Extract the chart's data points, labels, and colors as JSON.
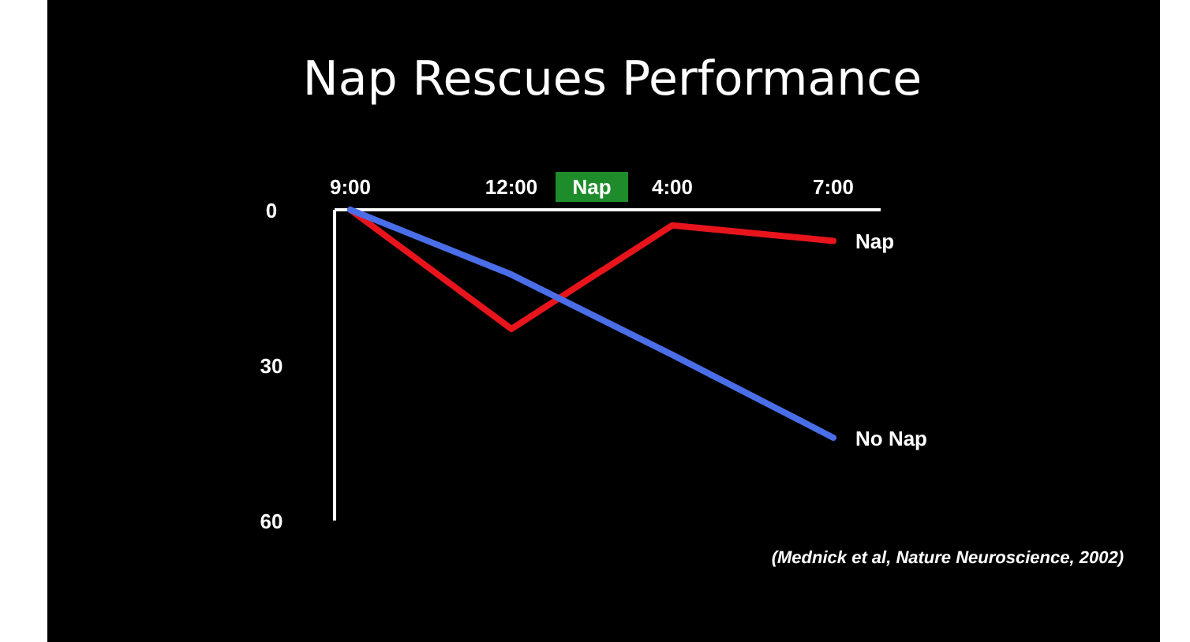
{
  "chart_data": {
    "type": "line",
    "title": "Nap Rescues Performance",
    "categories": [
      "9:00",
      "12:00",
      "4:00",
      "7:00"
    ],
    "series": [
      {
        "name": "Nap",
        "color": "#e8141c",
        "values": [
          0,
          23,
          3,
          6
        ]
      },
      {
        "name": "No Nap",
        "color": "#4a6ee8",
        "values": [
          0,
          12.5,
          28,
          44
        ]
      }
    ],
    "ylim": [
      60,
      0
    ],
    "yticks": [
      0,
      30,
      60
    ],
    "grid": false,
    "marker": "none",
    "line_style": "solid",
    "annotations": [
      "Nap",
      "(Mednick et al, Nature Neuroscience, 2002)"
    ]
  }
}
